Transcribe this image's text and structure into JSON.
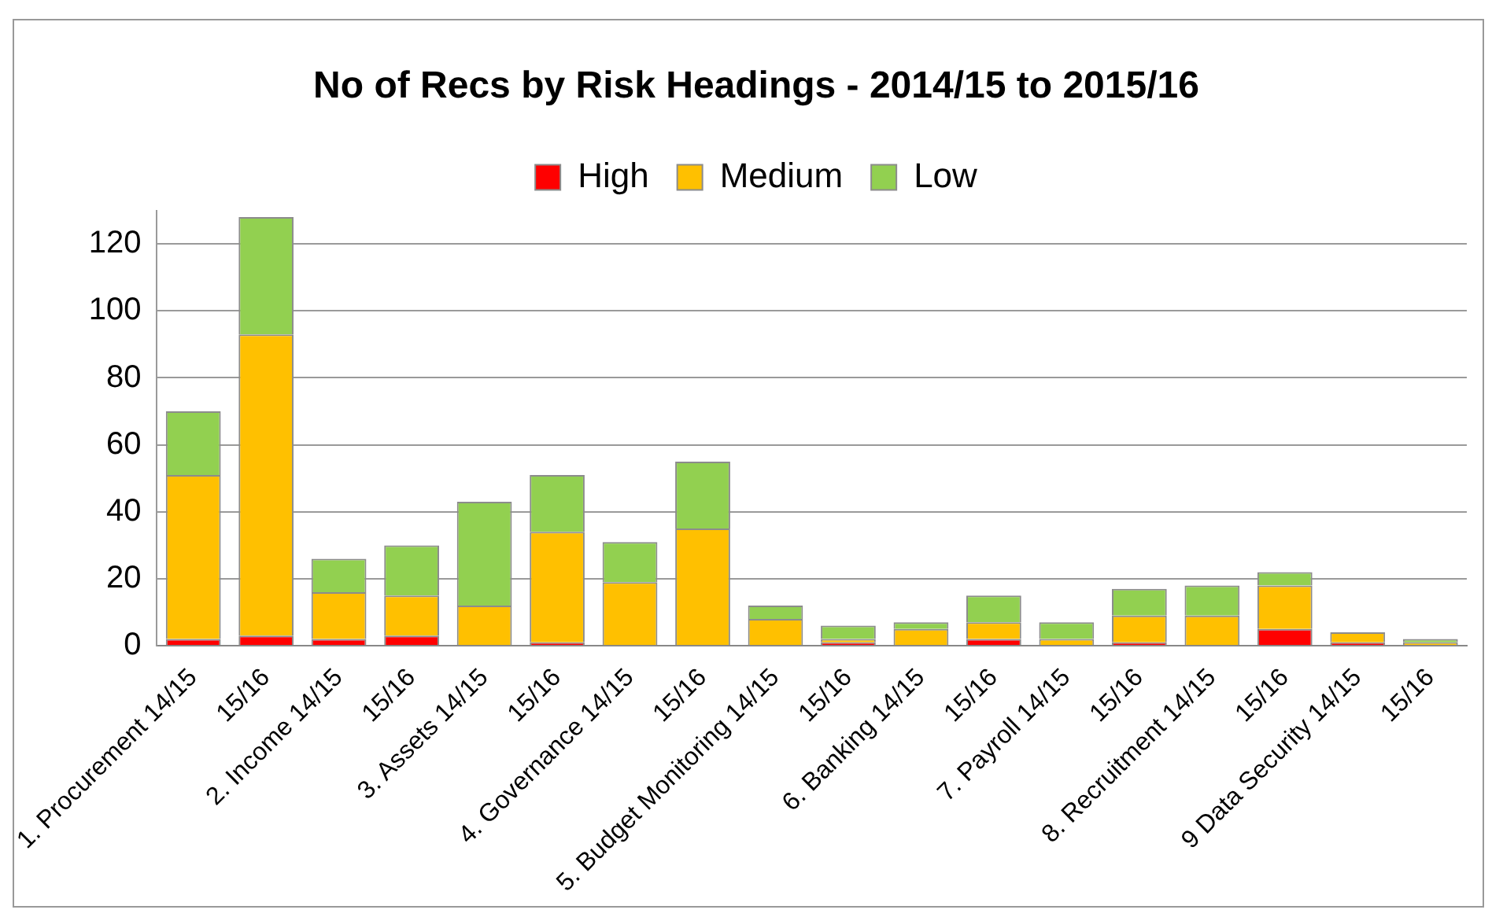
{
  "chart_data": {
    "type": "bar",
    "title": "No of Recs by Risk Headings - 2014/15 to 2015/16",
    "stacked": true,
    "categories": [
      "1. Procurement 14/15",
      "15/16",
      "2. Income 14/15",
      "15/16",
      "3. Assets 14/15",
      "15/16",
      "4. Governance 14/15",
      "15/16",
      "5. Budget Monitoring 14/15",
      "15/16",
      "6. Banking 14/15",
      "15/16",
      "7. Payroll 14/15",
      "15/16",
      "8. Recruitment 14/15",
      "15/16",
      "9 Data Security 14/15",
      "15/16"
    ],
    "series": [
      {
        "name": "High",
        "color": "#ff0000",
        "values": [
          2,
          3,
          2,
          3,
          0,
          1,
          0,
          0,
          0,
          1,
          0,
          2,
          0,
          1,
          0,
          5,
          1,
          0
        ]
      },
      {
        "name": "Medium",
        "color": "#ffc000",
        "values": [
          49,
          90,
          14,
          12,
          12,
          33,
          19,
          35,
          8,
          1,
          5,
          5,
          2,
          8,
          9,
          13,
          3,
          1
        ]
      },
      {
        "name": "Low",
        "color": "#92d050",
        "values": [
          19,
          35,
          10,
          15,
          31,
          17,
          12,
          20,
          4,
          4,
          2,
          8,
          5,
          8,
          9,
          4,
          0,
          1
        ]
      }
    ],
    "ylim": [
      0,
      130
    ],
    "yticks": [
      0,
      20,
      40,
      60,
      80,
      100,
      120
    ],
    "grid": "y",
    "legend": "top"
  }
}
